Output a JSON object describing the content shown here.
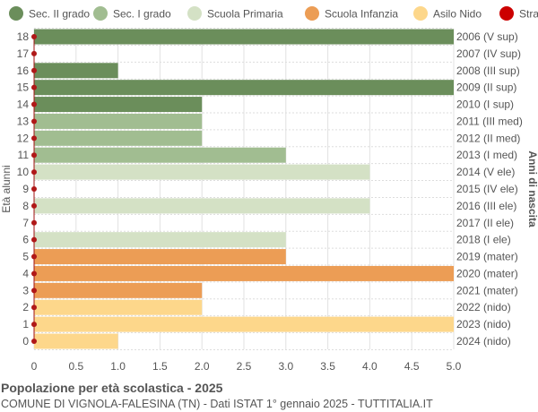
{
  "chart_data": {
    "type": "bar",
    "orientation": "horizontal",
    "title": "Popolazione per età scolastica - 2025",
    "subtitle": "COMUNE DI VIGNOLA-FALESINA (TN) - Dati ISTAT 1° gennaio 2025 - TUTTITALIA.IT",
    "ylabel": "Età alunni",
    "ylabel_right": "Anni di nascita",
    "xlim": [
      0,
      5
    ],
    "xticks": [
      "0",
      "0.5",
      "1.0",
      "1.5",
      "2.0",
      "2.5",
      "3.0",
      "3.5",
      "4.0",
      "4.5",
      "5.0"
    ],
    "grid": true,
    "legend_placement": "top",
    "legend": [
      {
        "name": "Sec. II grado",
        "color": "#6b8e5b"
      },
      {
        "name": "Sec. I grado",
        "color": "#a1bd91"
      },
      {
        "name": "Scuola Primaria",
        "color": "#d4e1c5"
      },
      {
        "name": "Scuola Infanzia",
        "color": "#ec9d55"
      },
      {
        "name": "Asilo Nido",
        "color": "#fdd78b"
      },
      {
        "name": "Stranieri",
        "color": "#cc0000"
      }
    ],
    "rows": [
      {
        "age": "18",
        "year": "2006 (V sup)",
        "value": 5,
        "group": 0,
        "stranieri": 0
      },
      {
        "age": "17",
        "year": "2007 (IV sup)",
        "value": 0,
        "group": 0,
        "stranieri": 0
      },
      {
        "age": "16",
        "year": "2008 (III sup)",
        "value": 1,
        "group": 0,
        "stranieri": 0
      },
      {
        "age": "15",
        "year": "2009 (II sup)",
        "value": 5,
        "group": 0,
        "stranieri": 0
      },
      {
        "age": "14",
        "year": "2010 (I sup)",
        "value": 2,
        "group": 0,
        "stranieri": 0
      },
      {
        "age": "13",
        "year": "2011 (III med)",
        "value": 2,
        "group": 1,
        "stranieri": 0
      },
      {
        "age": "12",
        "year": "2012 (II med)",
        "value": 2,
        "group": 1,
        "stranieri": 0
      },
      {
        "age": "11",
        "year": "2013 (I med)",
        "value": 3,
        "group": 1,
        "stranieri": 0
      },
      {
        "age": "10",
        "year": "2014 (V ele)",
        "value": 4,
        "group": 2,
        "stranieri": 0
      },
      {
        "age": "9",
        "year": "2015 (IV ele)",
        "value": 0,
        "group": 2,
        "stranieri": 0
      },
      {
        "age": "8",
        "year": "2016 (III ele)",
        "value": 4,
        "group": 2,
        "stranieri": 0
      },
      {
        "age": "7",
        "year": "2017 (II ele)",
        "value": 0,
        "group": 2,
        "stranieri": 0
      },
      {
        "age": "6",
        "year": "2018 (I ele)",
        "value": 3,
        "group": 2,
        "stranieri": 0
      },
      {
        "age": "5",
        "year": "2019 (mater)",
        "value": 3,
        "group": 3,
        "stranieri": 0
      },
      {
        "age": "4",
        "year": "2020 (mater)",
        "value": 5,
        "group": 3,
        "stranieri": 0
      },
      {
        "age": "3",
        "year": "2021 (mater)",
        "value": 2,
        "group": 3,
        "stranieri": 0
      },
      {
        "age": "2",
        "year": "2022 (nido)",
        "value": 2,
        "group": 4,
        "stranieri": 0
      },
      {
        "age": "1",
        "year": "2023 (nido)",
        "value": 5,
        "group": 4,
        "stranieri": 0
      },
      {
        "age": "0",
        "year": "2024 (nido)",
        "value": 1,
        "group": 4,
        "stranieri": 0
      }
    ]
  }
}
